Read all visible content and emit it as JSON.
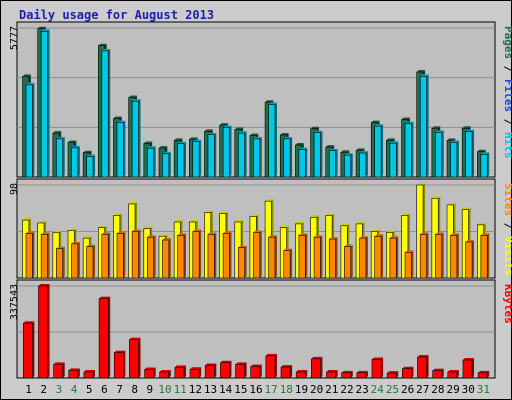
{
  "title": "Daily usage for August 2013",
  "colors": {
    "background": "#cccccc",
    "plot_background": "#bfbfbf",
    "grid": "#8f8f8f",
    "title": "#1e1eaa",
    "pages": "#1e6e50",
    "files": "#1c4ad6",
    "hits": "#00c8e8",
    "visits": "#ffff00",
    "sites": "#ff8800",
    "kbytes": "#ff0000",
    "weekend_label": "#1f7a3c",
    "weekday_label": "#000000"
  },
  "chart_data": [
    {
      "type": "bar",
      "panel": "pages-files-hits",
      "ymax_label": "5777",
      "ylim": [
        0,
        5777
      ],
      "side_label": [
        "Pages",
        " / ",
        "Files",
        " / ",
        "Hits"
      ],
      "categories": [
        "1",
        "2",
        "3",
        "4",
        "5",
        "6",
        "7",
        "8",
        "9",
        "10",
        "11",
        "12",
        "13",
        "14",
        "15",
        "16",
        "17",
        "18",
        "19",
        "20",
        "21",
        "22",
        "23",
        "24",
        "25",
        "26",
        "27",
        "28",
        "29",
        "30",
        "31"
      ],
      "weekend": [
        false,
        false,
        true,
        true,
        false,
        false,
        false,
        false,
        false,
        true,
        true,
        false,
        false,
        false,
        false,
        false,
        true,
        true,
        false,
        false,
        false,
        false,
        false,
        true,
        true,
        false,
        false,
        false,
        false,
        false,
        true
      ],
      "series": [
        {
          "name": "Pages",
          "color_key": "pages",
          "values": [
            3900,
            5750,
            1700,
            1340,
            940,
            5090,
            2270,
            3080,
            1300,
            1120,
            1420,
            1460,
            1770,
            2010,
            1840,
            1610,
            2900,
            1630,
            1240,
            1870,
            1160,
            960,
            1030,
            2110,
            1420,
            2230,
            4070,
            1890,
            1420,
            1890,
            980
          ]
        },
        {
          "name": "Hits",
          "color_key": "hits",
          "values": [
            3570,
            5650,
            1480,
            1130,
            790,
            4890,
            2110,
            2940,
            1120,
            900,
            1290,
            1370,
            1640,
            1920,
            1700,
            1480,
            2810,
            1480,
            1060,
            1720,
            1020,
            850,
            930,
            1970,
            1310,
            2070,
            3900,
            1730,
            1340,
            1760,
            880
          ]
        }
      ]
    },
    {
      "type": "bar",
      "panel": "sites-visits",
      "ymax_label": "98",
      "ylim": [
        0,
        98
      ],
      "side_label": [
        "Sites",
        " / ",
        "Visits"
      ],
      "categories": [
        "1",
        "2",
        "3",
        "4",
        "5",
        "6",
        "7",
        "8",
        "9",
        "10",
        "11",
        "12",
        "13",
        "14",
        "15",
        "16",
        "17",
        "18",
        "19",
        "20",
        "21",
        "22",
        "23",
        "24",
        "25",
        "26",
        "27",
        "28",
        "29",
        "30",
        "31"
      ],
      "series": [
        {
          "name": "Visits",
          "color_key": "visits",
          "values": [
            61,
            58,
            48,
            50,
            42,
            53,
            66,
            78,
            52,
            44,
            59,
            59,
            69,
            68,
            59,
            65,
            81,
            53,
            57,
            64,
            66,
            55,
            57,
            49,
            48,
            66,
            98,
            84,
            77,
            72,
            56
          ]
        },
        {
          "name": "Sites",
          "color_key": "sites",
          "values": [
            47,
            46,
            31,
            36,
            33,
            46,
            47,
            49,
            43,
            40,
            45,
            49,
            46,
            47,
            32,
            48,
            43,
            29,
            45,
            43,
            41,
            33,
            42,
            44,
            42,
            27,
            46,
            46,
            45,
            38,
            45
          ]
        }
      ]
    },
    {
      "type": "bar",
      "panel": "kbytes",
      "ymax_label": "337543",
      "ylim": [
        0,
        337543
      ],
      "side_label": [
        "KBytes"
      ],
      "categories": [
        "1",
        "2",
        "3",
        "4",
        "5",
        "6",
        "7",
        "8",
        "9",
        "10",
        "11",
        "12",
        "13",
        "14",
        "15",
        "16",
        "17",
        "18",
        "19",
        "20",
        "21",
        "22",
        "23",
        "24",
        "25",
        "26",
        "27",
        "28",
        "29",
        "30",
        "31"
      ],
      "series": [
        {
          "name": "KBytes",
          "color_key": "kbytes",
          "values": [
            201000,
            337543,
            50000,
            28000,
            22000,
            291000,
            93000,
            141000,
            31000,
            22000,
            39000,
            32000,
            46000,
            56000,
            50000,
            42000,
            81000,
            40000,
            22000,
            70000,
            22000,
            19000,
            19000,
            68000,
            18000,
            34000,
            77000,
            27000,
            22000,
            66000,
            19000
          ]
        }
      ]
    }
  ]
}
